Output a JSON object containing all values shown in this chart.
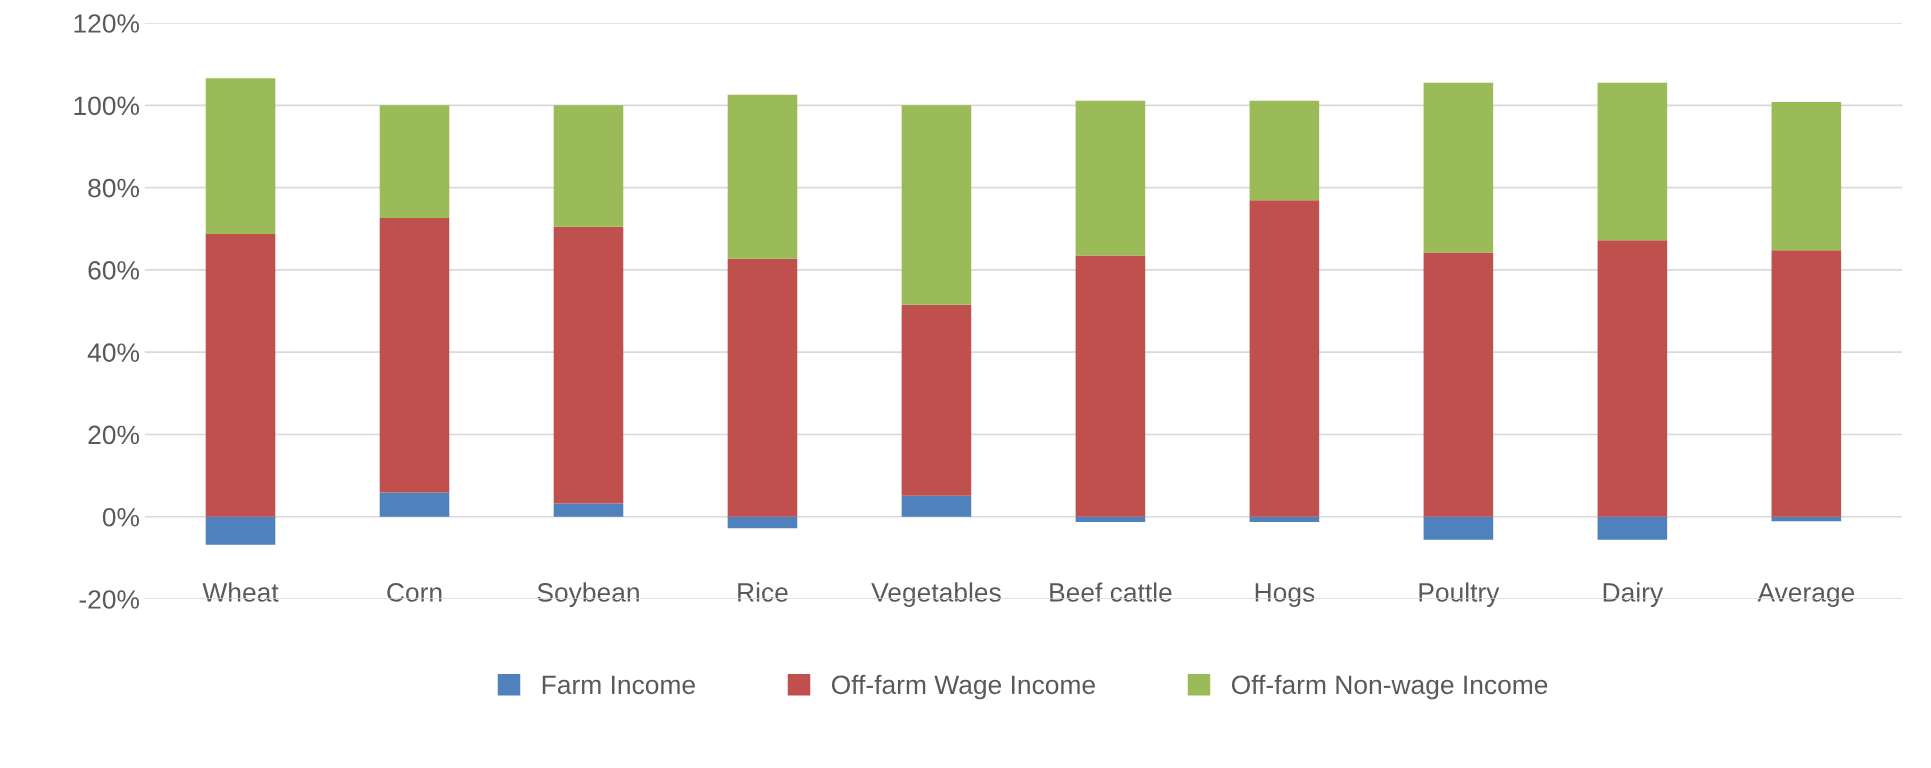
{
  "chart_data": {
    "type": "bar",
    "stacked": true,
    "categories": [
      "Wheat",
      "Corn",
      "Soybean",
      "Rice",
      "Vegetables",
      "Beef cattle",
      "Hogs",
      "Poultry",
      "Dairy",
      "Average"
    ],
    "series": [
      {
        "name": "Farm Income",
        "color": "#4f81bd",
        "values": [
          -6.8,
          5.9,
          3.2,
          -2.8,
          5.1,
          -1.3,
          -1.3,
          -5.6,
          -5.6,
          -1.1
        ]
      },
      {
        "name": "Off-farm Wage Income",
        "color": "#c0504d",
        "values": [
          68.7,
          66.7,
          67.3,
          62.7,
          46.4,
          63.5,
          76.9,
          64.2,
          67.2,
          64.8
        ]
      },
      {
        "name": "Off-farm Non-wage Income",
        "color": "#9bbb59",
        "values": [
          37.9,
          27.4,
          29.5,
          39.9,
          48.5,
          37.6,
          24.2,
          41.3,
          38.3,
          36.0
        ]
      }
    ],
    "ylim": [
      -20,
      120
    ],
    "yticks": [
      {
        "value": -20,
        "label": "-20%"
      },
      {
        "value": 0,
        "label": "0%"
      },
      {
        "value": 20,
        "label": "20%"
      },
      {
        "value": 40,
        "label": "40%"
      },
      {
        "value": 60,
        "label": "60%"
      },
      {
        "value": 80,
        "label": "80%"
      },
      {
        "value": 100,
        "label": "100%"
      },
      {
        "value": 120,
        "label": "120%"
      }
    ],
    "grid": "y",
    "legend": "bottom"
  }
}
